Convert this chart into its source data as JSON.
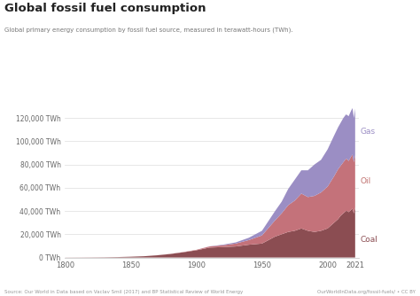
{
  "title": "Global fossil fuel consumption",
  "subtitle": "Global primary energy consumption by fossil fuel source, measured in terawatt-hours (TWh).",
  "source_left": "Source: Our World in Data based on Vaclav Smil (2017) and BP Statistical Review of World Energy",
  "source_right": "OurWorldInData.org/fossil-fuels/ • CC BY",
  "xlabel_ticks": [
    1800,
    1850,
    1900,
    1950,
    2000,
    2021
  ],
  "ylabel_ticks": [
    0,
    20000,
    40000,
    60000,
    80000,
    100000,
    120000
  ],
  "ylabel_labels": [
    "0 TWh",
    "20,000 TWh",
    "40,000 TWh",
    "60,000 TWh",
    "80,000 TWh",
    "100,000 TWh",
    "120,000 TWh"
  ],
  "ylim": [
    0,
    140000
  ],
  "xlim": [
    1800,
    2024
  ],
  "color_coal": "#8B4D52",
  "color_oil": "#C4727A",
  "color_gas": "#9B8EC4",
  "background": "#ffffff",
  "owid_bg": "#1a3a5c",
  "owid_red": "#c0392b",
  "legend_gas": "Gas",
  "legend_oil": "Oil",
  "legend_coal": "Coal",
  "years": [
    1800,
    1810,
    1820,
    1830,
    1840,
    1850,
    1860,
    1870,
    1880,
    1890,
    1900,
    1910,
    1920,
    1930,
    1940,
    1950,
    1960,
    1965,
    1970,
    1975,
    1980,
    1985,
    1990,
    1995,
    2000,
    2005,
    2008,
    2010,
    2012,
    2014,
    2015,
    2016,
    2017,
    2018,
    2019,
    2020,
    2021
  ],
  "coal": [
    98,
    130,
    180,
    250,
    400,
    700,
    1100,
    1900,
    3000,
    4500,
    6200,
    8500,
    9000,
    9500,
    11000,
    12000,
    18000,
    20000,
    22000,
    23000,
    25000,
    23000,
    22000,
    23000,
    25000,
    30000,
    33000,
    36000,
    38000,
    40000,
    40000,
    39000,
    40000,
    41000,
    42000,
    38000,
    43000
  ],
  "oil": [
    0,
    0,
    0,
    0,
    0,
    0,
    0,
    50,
    100,
    200,
    400,
    1000,
    1500,
    2500,
    4000,
    7000,
    14000,
    18000,
    23000,
    26000,
    30000,
    29000,
    31000,
    33000,
    36000,
    40000,
    43000,
    43000,
    44000,
    45000,
    44500,
    44000,
    45000,
    46000,
    46500,
    44000,
    45000
  ],
  "gas": [
    0,
    0,
    0,
    0,
    0,
    0,
    0,
    0,
    0,
    0,
    0,
    100,
    500,
    1000,
    2000,
    4000,
    8000,
    10000,
    14000,
    18000,
    20000,
    23000,
    27000,
    28000,
    32000,
    35000,
    36000,
    37000,
    38000,
    38000,
    38000,
    38500,
    39000,
    39500,
    40000,
    38000,
    40000
  ]
}
